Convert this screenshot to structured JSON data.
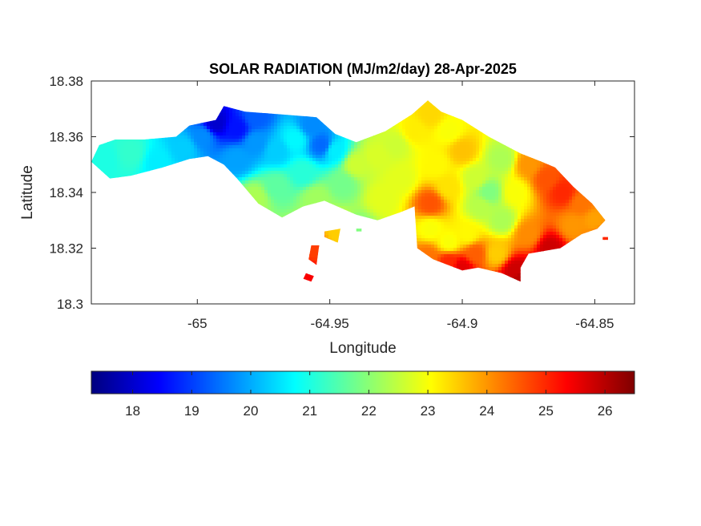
{
  "chart_data": {
    "type": "heatmap",
    "title": "SOLAR RADIATION (MJ/m2/day) 28-Apr-2025",
    "xlabel": "Longitude",
    "ylabel": "Latitude",
    "xlim": [
      -65.04,
      -64.835
    ],
    "ylim": [
      18.3,
      18.38
    ],
    "xticks": [
      -65,
      -64.95,
      -64.9,
      -64.85
    ],
    "xtick_labels": [
      "-65",
      "-64.95",
      "-64.9",
      "-64.85"
    ],
    "yticks": [
      18.3,
      18.32,
      18.34,
      18.36,
      18.38
    ],
    "ytick_labels": [
      "18.3",
      "18.32",
      "18.34",
      "18.36",
      "18.38"
    ],
    "grid": false,
    "colormap": "jet",
    "colorbar": {
      "orientation": "horizontal",
      "location": "below",
      "range": [
        17.3,
        26.5
      ],
      "ticks": [
        18,
        19,
        20,
        21,
        22,
        23,
        24,
        25,
        26
      ],
      "tick_labels": [
        "18",
        "19",
        "20",
        "21",
        "22",
        "23",
        "24",
        "25",
        "26"
      ]
    },
    "colors": {
      "jet": [
        "#00007f",
        "#0000ff",
        "#007fff",
        "#00ffff",
        "#7fff7f",
        "#ffff00",
        "#ff7f00",
        "#ff0000",
        "#7f0000"
      ]
    },
    "regions": [
      {
        "name": "main-island",
        "outline": [
          [
            -65.04,
            18.351
          ],
          [
            -65.037,
            18.357
          ],
          [
            -65.031,
            18.359
          ],
          [
            -65.02,
            18.359
          ],
          [
            -65.008,
            18.36
          ],
          [
            -65.003,
            18.364
          ],
          [
            -64.993,
            18.366
          ],
          [
            -64.99,
            18.371
          ],
          [
            -64.982,
            18.369
          ],
          [
            -64.968,
            18.368
          ],
          [
            -64.955,
            18.367
          ],
          [
            -64.948,
            18.361
          ],
          [
            -64.94,
            18.358
          ],
          [
            -64.929,
            18.362
          ],
          [
            -64.919,
            18.368
          ],
          [
            -64.913,
            18.373
          ],
          [
            -64.908,
            18.369
          ],
          [
            -64.9,
            18.366
          ],
          [
            -64.89,
            18.36
          ],
          [
            -64.878,
            18.354
          ],
          [
            -64.87,
            18.351
          ],
          [
            -64.865,
            18.349
          ],
          [
            -64.858,
            18.342
          ],
          [
            -64.851,
            18.336
          ],
          [
            -64.846,
            18.33
          ],
          [
            -64.849,
            18.327
          ],
          [
            -64.855,
            18.325
          ],
          [
            -64.863,
            18.32
          ],
          [
            -64.875,
            18.318
          ],
          [
            -64.878,
            18.313
          ],
          [
            -64.878,
            18.308
          ],
          [
            -64.885,
            18.311
          ],
          [
            -64.894,
            18.313
          ],
          [
            -64.9,
            18.312
          ],
          [
            -64.911,
            18.316
          ],
          [
            -64.917,
            18.32
          ],
          [
            -64.918,
            18.335
          ],
          [
            -64.923,
            18.333
          ],
          [
            -64.932,
            18.33
          ],
          [
            -64.94,
            18.332
          ],
          [
            -64.952,
            18.337
          ],
          [
            -64.96,
            18.335
          ],
          [
            -64.968,
            18.331
          ],
          [
            -64.977,
            18.336
          ],
          [
            -64.985,
            18.345
          ],
          [
            -64.99,
            18.35
          ],
          [
            -64.996,
            18.353
          ],
          [
            -65.003,
            18.352
          ],
          [
            -65.013,
            18.349
          ],
          [
            -65.025,
            18.346
          ],
          [
            -65.033,
            18.345
          ],
          [
            -65.04,
            18.351
          ]
        ]
      },
      {
        "name": "islet-1",
        "outline": [
          [
            -64.952,
            18.326
          ],
          [
            -64.946,
            18.327
          ],
          [
            -64.947,
            18.322
          ],
          [
            -64.952,
            18.324
          ]
        ]
      },
      {
        "name": "islet-2",
        "outline": [
          [
            -64.957,
            18.321
          ],
          [
            -64.954,
            18.321
          ],
          [
            -64.955,
            18.314
          ],
          [
            -64.958,
            18.316
          ]
        ]
      },
      {
        "name": "islet-3",
        "outline": [
          [
            -64.959,
            18.311
          ],
          [
            -64.956,
            18.31
          ],
          [
            -64.957,
            18.308
          ],
          [
            -64.96,
            18.309
          ]
        ]
      },
      {
        "name": "islet-4",
        "outline": [
          [
            -64.94,
            18.327
          ],
          [
            -64.938,
            18.327
          ],
          [
            -64.938,
            18.326
          ],
          [
            -64.94,
            18.326
          ]
        ]
      },
      {
        "name": "islet-5",
        "outline": [
          [
            -64.847,
            18.324
          ],
          [
            -64.845,
            18.324
          ],
          [
            -64.845,
            18.323
          ],
          [
            -64.847,
            18.323
          ]
        ]
      }
    ],
    "samples": [
      [
        -65.035,
        18.352,
        21.0
      ],
      [
        -65.025,
        18.354,
        21.2
      ],
      [
        -65.015,
        18.351,
        20.6
      ],
      [
        -65.005,
        18.356,
        20.3
      ],
      [
        -64.998,
        18.36,
        19.7
      ],
      [
        -64.993,
        18.365,
        18.0
      ],
      [
        -64.985,
        18.363,
        18.6
      ],
      [
        -64.978,
        18.367,
        19.3
      ],
      [
        -64.978,
        18.358,
        19.8
      ],
      [
        -64.985,
        18.352,
        19.9
      ],
      [
        -64.97,
        18.355,
        20.3
      ],
      [
        -64.963,
        18.359,
        20.7
      ],
      [
        -64.957,
        18.364,
        19.7
      ],
      [
        -64.953,
        18.357,
        19.4
      ],
      [
        -64.948,
        18.355,
        20.6
      ],
      [
        -64.96,
        18.347,
        21.1
      ],
      [
        -64.97,
        18.342,
        21.6
      ],
      [
        -64.978,
        18.338,
        22.3
      ],
      [
        -64.955,
        18.338,
        22.2
      ],
      [
        -64.945,
        18.343,
        21.8
      ],
      [
        -64.94,
        18.35,
        22.6
      ],
      [
        -64.932,
        18.353,
        22.7
      ],
      [
        -64.925,
        18.357,
        22.6
      ],
      [
        -64.918,
        18.362,
        23.2
      ],
      [
        -64.912,
        18.368,
        23.4
      ],
      [
        -64.905,
        18.362,
        23.0
      ],
      [
        -64.9,
        18.355,
        23.6
      ],
      [
        -64.91,
        18.35,
        23.1
      ],
      [
        -64.923,
        18.345,
        22.8
      ],
      [
        -64.93,
        18.338,
        22.8
      ],
      [
        -64.912,
        18.336,
        24.6
      ],
      [
        -64.905,
        18.342,
        23.3
      ],
      [
        -64.895,
        18.345,
        22.6
      ],
      [
        -64.885,
        18.352,
        22.3
      ],
      [
        -64.875,
        18.35,
        24.0
      ],
      [
        -64.868,
        18.345,
        24.6
      ],
      [
        -64.862,
        18.34,
        25.0
      ],
      [
        -64.855,
        18.336,
        24.3
      ],
      [
        -64.85,
        18.33,
        23.9
      ],
      [
        -64.858,
        18.328,
        24.0
      ],
      [
        -64.867,
        18.32,
        25.8
      ],
      [
        -64.875,
        18.325,
        24.1
      ],
      [
        -64.885,
        18.33,
        22.3
      ],
      [
        -64.893,
        18.335,
        22.4
      ],
      [
        -64.898,
        18.325,
        23.1
      ],
      [
        -64.905,
        18.322,
        23.0
      ],
      [
        -64.912,
        18.327,
        23.0
      ],
      [
        -64.913,
        18.317,
        24.3
      ],
      [
        -64.905,
        18.315,
        25.0
      ],
      [
        -64.9,
        18.313,
        25.6
      ],
      [
        -64.895,
        18.318,
        24.5
      ],
      [
        -64.887,
        18.318,
        23.5
      ],
      [
        -64.88,
        18.312,
        25.8
      ],
      [
        -64.878,
        18.309,
        26.0
      ],
      [
        -64.89,
        18.34,
        21.9
      ],
      [
        -64.88,
        18.34,
        23.0
      ],
      [
        -64.947,
        18.325,
        23.5
      ],
      [
        -64.955,
        18.32,
        24.8
      ],
      [
        -64.957,
        18.31,
        25.4
      ],
      [
        -64.939,
        18.327,
        21.9
      ],
      [
        -64.846,
        18.3235,
        25.0
      ]
    ]
  }
}
